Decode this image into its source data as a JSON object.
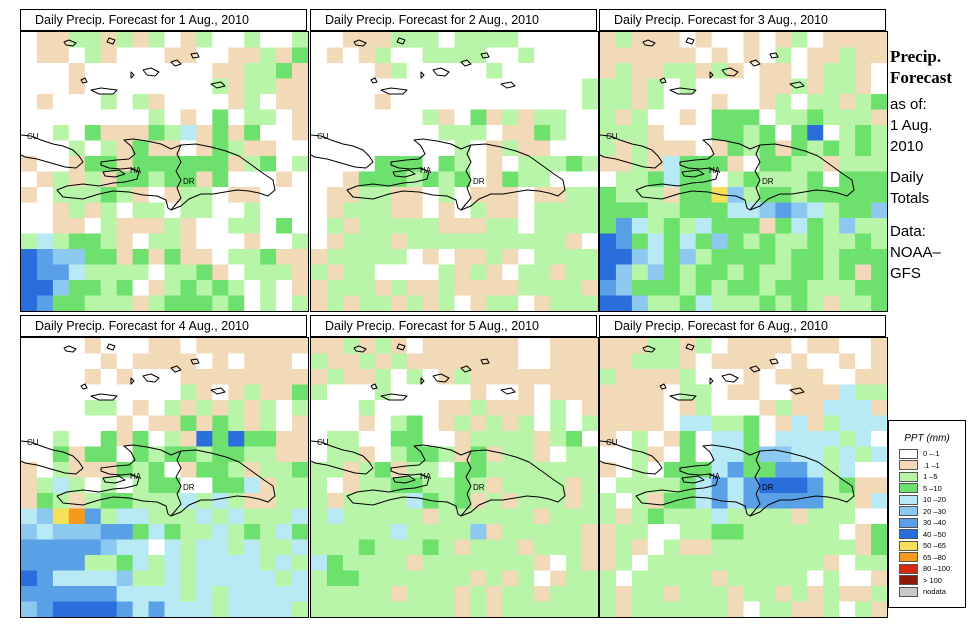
{
  "palette": {
    "0": "#ffffff",
    "1": "#f2d9b8",
    "2": "#b8f5a8",
    "3": "#6ee06e",
    "4": "#b8eaf5",
    "5": "#8cc8f0",
    "6": "#5aa0e6",
    "7": "#2a6edc",
    "8": "#f5e05a",
    "9": "#f59a1e",
    "10": "#d42a14",
    "11": "#8c1a0a",
    "12": "#c8c8c8"
  },
  "panels": [
    {
      "title": "Daily Precip. Forecast for  1 Aug., 2010",
      "day": 1
    },
    {
      "title": "Daily Precip. Forecast for  2 Aug., 2010",
      "day": 2
    },
    {
      "title": "Daily Precip. Forecast for  3 Aug., 2010",
      "day": 3
    },
    {
      "title": "Daily Precip. Forecast for  4 Aug., 2010",
      "day": 4
    },
    {
      "title": "Daily Precip. Forecast for  5 Aug., 2010",
      "day": 5
    },
    {
      "title": "Daily Precip. Forecast for  6 Aug., 2010",
      "day": 6
    }
  ],
  "map_labels": {
    "cu": "CU",
    "ha": "HA",
    "dr": "DR"
  },
  "side": {
    "line1": "Precip.",
    "line2": "Forecast",
    "line3": "as of:",
    "line4": "1 Aug.",
    "line5": "2010",
    "line6": "Daily",
    "line7": "Totals",
    "line8": "Data:",
    "line9": "NOAA–",
    "line10": "GFS"
  },
  "legend": {
    "title": "PPT (mm)",
    "items": [
      {
        "label": "0 –.1",
        "color": "#ffffff"
      },
      {
        "label": ".1 –1",
        "color": "#f2d9b8"
      },
      {
        "label": "1 –5",
        "color": "#b8f5a8"
      },
      {
        "label": "5 –10",
        "color": "#6ee06e"
      },
      {
        "label": "10 –20",
        "color": "#b8eaf5"
      },
      {
        "label": "20 –30",
        "color": "#8cc8f0"
      },
      {
        "label": "30 –40",
        "color": "#5aa0e6"
      },
      {
        "label": "40 –50",
        "color": "#2a6edc"
      },
      {
        "label": "50 –65",
        "color": "#f5e05a"
      },
      {
        "label": "65 –80",
        "color": "#f59a1e"
      },
      {
        "label": "80 –100",
        "color": "#d42a14"
      },
      {
        "label": "> 100",
        "color": "#8c1a0a"
      },
      {
        "label": "nodata",
        "color": "#c8c8c8"
      }
    ]
  },
  "grids": {
    "1": [
      "011221212012002002",
      "011021000110011213",
      "000100000000112231",
      "000100000000212211",
      "010002021000012011",
      "000000002010302201",
      "002031113241313001",
      "000202131101321100",
      "100133133333312302",
      "012121332331300010",
      "102223210122011000",
      "001212022022002000",
      "001102111210022030",
      "242332102210001002",
      "765533131311022311",
      "766422220223102221",
      "775332301232320201",
      "763322212333230202"
    ],
    "2": [
      "001112220222200000",
      "010120022220020000",
      "000012000002000000",
      "000000000000000002",
      "000010000000000002",
      "000000021031212200",
      "000000002220113200",
      "000000000201211000",
      "000033303201022232",
      "001333232301322000",
      "011221102011101122",
      "012221101021102222",
      "021222221112202222",
      "012221222222222210",
      "122222010112102222",
      "212200002121022122",
      "122212112111122221",
      "121221212012201222"
    ],
    "3": [
      "121110100101201111",
      "111111010102011211",
      "121122121011012210",
      "221202000011212210",
      "221200010012022123",
      "212001033302232221",
      "222100033230370232",
      "212111013231323232",
      "112143331033221222",
      "022343302322230333",
      "322213385233233333",
      "333223334456542335",
      "364232433313432522",
      "763434353232232232",
      "775435233332332333",
      "752532332322332313",
      "653332323323322233",
      "775223422232321223"
    ],
    "4": [
      "000010001101111111",
      "000001011110101110",
      "000010100011111111",
      "000000000021012113",
      "000022010212121202",
      "000000101131321201",
      "002003130217373311",
      "003133032332332211",
      "102111323013321223",
      "124202023300334122",
      "132123322242421122",
      "458962442224242224",
      "545556634322423243",
      "666665440424424224",
      "666622342424444242",
      "764444522424444424",
      "666666444424244444",
      "567777646444244442"
    ],
    "5": [
      "112121011111100111",
      "211212111111100111",
      "121120201211111111",
      "200020000010010111",
      "000200001121110201",
      "000102301212120202",
      "022003300122221230",
      "022102332131221022",
      "221231220332222222",
      "201223322321222212",
      "212222432312122212",
      "242222212222221222",
      "222224222251222221",
      "222322232122212221",
      "432222122222221021",
      "233222222212120122",
      "222221222121221222",
      "222222222121222222"
    ],
    "6": [
      "111221201111011001",
      "112221011110100101",
      "211112000101110011",
      "111102201100111422",
      "111101200012114441",
      "111104422301412444",
      "102013044304444240",
      "002103044355442424",
      "102033346336642400",
      "022223464677762311",
      "202133464666662214",
      "212322242222122200",
      "122002233222222013",
      "121021122222222213",
      "120222222222221022",
      "202222212222202001",
      "212212221221212112",
      "212222221022112021"
    ]
  }
}
